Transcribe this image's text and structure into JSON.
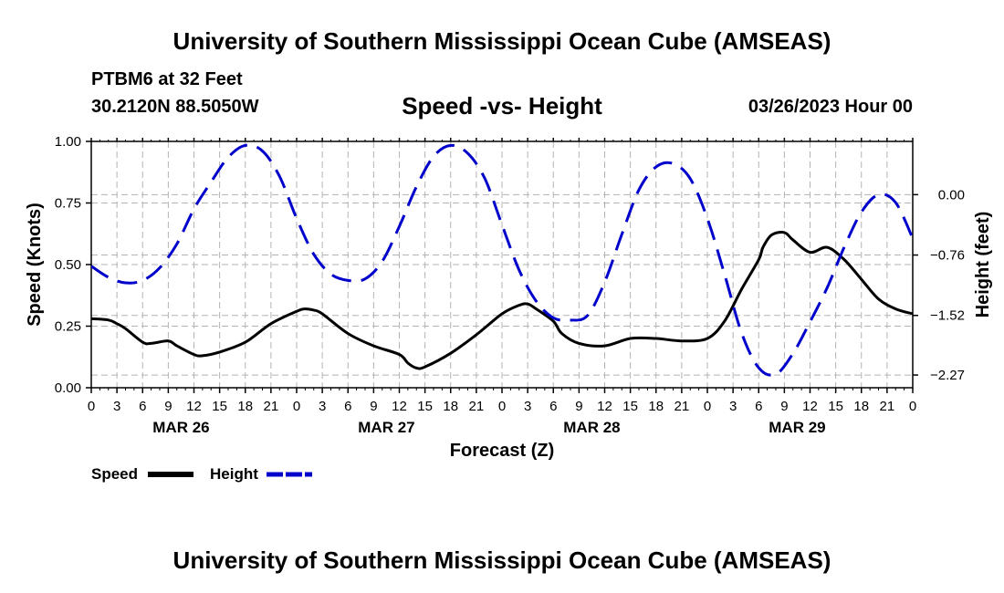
{
  "header": {
    "title": "University of Southern Mississippi Ocean Cube (AMSEAS)",
    "station": "PTBM6 at 32 Feet",
    "coords": "30.2120N  88.5050W",
    "subtitle": "Speed -vs- Height",
    "datetime": "03/26/2023 Hour 00"
  },
  "footer": {
    "title": "University of Southern Mississippi Ocean Cube (AMSEAS)"
  },
  "chart_data": {
    "type": "line",
    "title": "Speed -vs- Height",
    "xlabel": "Forecast (Z)",
    "ylabel_left": "Speed (Knots)",
    "ylabel_right": "Height (feet)",
    "x_range": [
      0,
      96
    ],
    "x_tick_labels": [
      "0",
      "3",
      "6",
      "9",
      "12",
      "15",
      "18",
      "21",
      "0",
      "3",
      "6",
      "9",
      "12",
      "15",
      "18",
      "21",
      "0",
      "3",
      "6",
      "9",
      "12",
      "15",
      "18",
      "21",
      "0",
      "3",
      "6",
      "9",
      "12",
      "15",
      "18",
      "21",
      "0"
    ],
    "date_labels": [
      {
        "label": "MAR 26",
        "hour": 10.5
      },
      {
        "label": "MAR 27",
        "hour": 34.5
      },
      {
        "label": "MAR 28",
        "hour": 58.5
      },
      {
        "label": "MAR 29",
        "hour": 82.5
      }
    ],
    "y_left": {
      "range": [
        0,
        1
      ],
      "ticks": [
        0,
        0.25,
        0.5,
        0.75,
        1.0
      ],
      "tick_labels": [
        "0.00",
        "0.25",
        "0.50",
        "0.75",
        "1.00"
      ]
    },
    "y_right": {
      "range": [
        -2.43,
        0.67
      ],
      "ticks": [
        0.0,
        -0.76,
        -1.52,
        -2.27
      ],
      "tick_labels": [
        "0.00",
        "−0.76",
        "−1.52",
        "−2.27"
      ]
    },
    "series": [
      {
        "name": "Speed",
        "axis": "left",
        "color": "#000000",
        "style": "solid",
        "x": [
          0,
          2,
          3,
          4,
          6,
          7,
          9,
          10,
          12,
          13,
          15,
          18,
          21,
          24,
          25,
          26,
          27,
          30,
          33,
          36,
          37,
          38,
          39,
          42,
          45,
          48,
          50,
          51,
          52,
          54,
          55,
          57,
          60,
          63,
          66,
          69,
          72,
          74,
          76,
          78,
          78.5,
          79.5,
          81,
          82,
          84,
          86,
          88,
          90,
          92,
          94,
          96
        ],
        "values": [
          0.28,
          0.275,
          0.26,
          0.24,
          0.185,
          0.18,
          0.19,
          0.17,
          0.135,
          0.13,
          0.145,
          0.185,
          0.26,
          0.31,
          0.32,
          0.315,
          0.3,
          0.22,
          0.17,
          0.135,
          0.1,
          0.08,
          0.085,
          0.14,
          0.215,
          0.3,
          0.335,
          0.34,
          0.32,
          0.27,
          0.22,
          0.18,
          0.17,
          0.2,
          0.2,
          0.19,
          0.2,
          0.27,
          0.4,
          0.52,
          0.57,
          0.62,
          0.63,
          0.6,
          0.55,
          0.57,
          0.52,
          0.44,
          0.36,
          0.32,
          0.3
        ]
      },
      {
        "name": "Height",
        "axis": "right",
        "color": "#0000cc",
        "style": "dashed",
        "x": [
          0,
          2,
          4,
          6,
          8,
          10,
          12,
          14,
          16,
          18,
          20,
          22,
          24,
          26,
          28,
          30,
          32,
          34,
          36,
          38,
          40,
          42,
          44,
          46,
          48,
          50,
          52,
          54,
          56,
          58,
          60,
          62,
          64,
          66,
          68,
          70,
          72,
          74,
          76,
          78,
          80,
          82,
          84,
          86,
          88,
          90,
          92,
          94,
          96
        ],
        "values": [
          -0.9,
          -1.04,
          -1.11,
          -1.08,
          -0.92,
          -0.62,
          -0.18,
          0.16,
          0.47,
          0.62,
          0.55,
          0.23,
          -0.3,
          -0.75,
          -1.0,
          -1.08,
          -1.06,
          -0.84,
          -0.4,
          0.1,
          0.48,
          0.62,
          0.52,
          0.2,
          -0.38,
          -0.95,
          -1.34,
          -1.55,
          -1.58,
          -1.52,
          -1.1,
          -0.5,
          0.06,
          0.35,
          0.39,
          0.2,
          -0.3,
          -1.0,
          -1.74,
          -2.18,
          -2.26,
          -2.0,
          -1.6,
          -1.17,
          -0.66,
          -0.22,
          0.0,
          -0.1,
          -0.55
        ]
      }
    ],
    "legend": [
      {
        "label": "Speed",
        "color": "#000000",
        "style": "solid"
      },
      {
        "label": "Height",
        "color": "#0000cc",
        "style": "dashed"
      }
    ],
    "grid": true,
    "legend_position": "bottom-left"
  }
}
